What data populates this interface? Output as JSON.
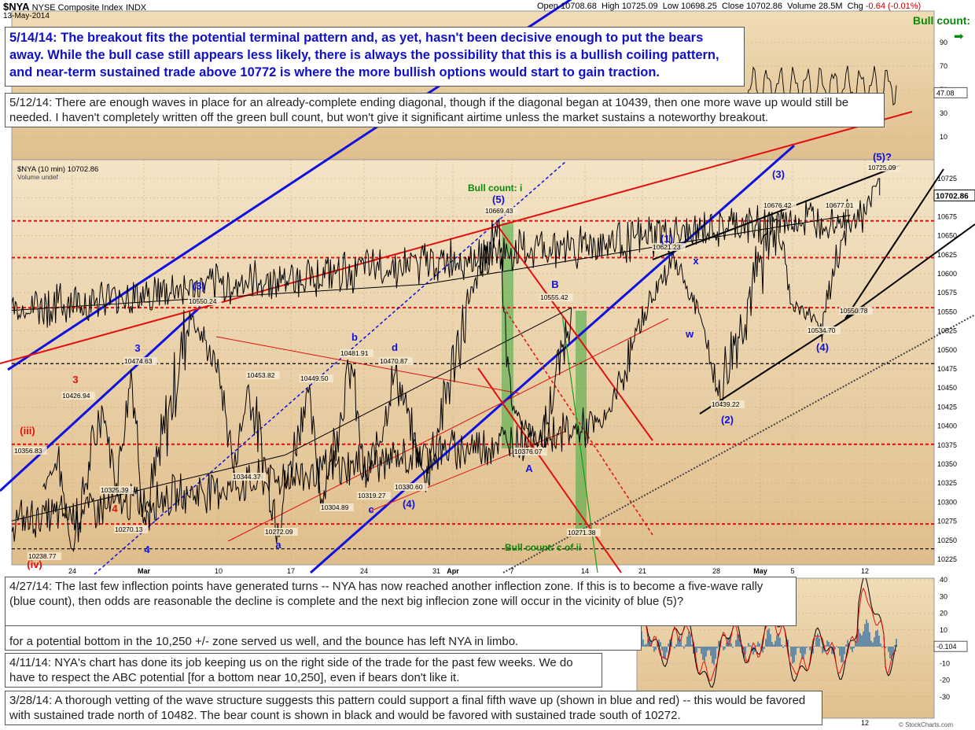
{
  "header": {
    "symbol": "$NYA",
    "name": "NYSE Composite Index",
    "exchange": "INDX",
    "date": "13-May-2014",
    "open_label": "Open",
    "open": "10708.68",
    "high_label": "High",
    "high": "10725.09",
    "low_label": "Low",
    "low": "10698.25",
    "close_label": "Close",
    "close": "10702.86",
    "volume_label": "Volume",
    "volume": "28.5M",
    "chg_label": "Chg",
    "chg": "-0.64 (-0.01%)",
    "credit": "© StockCharts.com"
  },
  "colors": {
    "panel_bg": "#e2c392",
    "panel_bg_light": "#f1e0bf",
    "price": "#000000",
    "blue": "#1010e0",
    "red": "#e01010",
    "green_zone": "#3daa3d",
    "label_green": "#0a8a0a"
  },
  "bull_count_label": "Bull count:",
  "notes": {
    "n0514": "5/14/14:  The breakout fits the potential terminal pattern and, as yet, hasn't been decisive enough to put the bears away. While the bull case still appears less likely, there is always the possibility that this is a bullish coiling pattern, and near-term sustained trade above 10772 is where the more bullish options would start to gain traction.",
    "n0512": "5/12/14:  There are enough waves in place for an already-complete ending diagonal, though if the diagonal began at 10439, then one more wave up would still be needed.  I haven't completely written off the green bull count, but won't give it significant airtime unless the market sustains a noteworthy breakout.",
    "n0427": "4/27/14:  The last few inflection points have generated turns -- NYA has now reached another inflection zone.  If this is to become a five-wave rally (blue count), then odds are reasonable the decline is complete and the next big inflecion zone will occur in the vicinity of blue (5)?",
    "n0418": "for a potential bottom in the 10,250 +/- zone served us well, and the bounce has left NYA in limbo.",
    "n0411": "4/11/14:  NYA's chart has done its job keeping us on the right side of the trade for the past few weeks.  We do have to respect the ABC potential [for a bottom near 10,250], even if bears don't like it.",
    "n0328": "3/28/14:  A thorough vetting of the wave structure suggests this pattern could support a final fifth wave up (shown in blue and red) -- this would be favored with sustained trade north of 10482.  The bear count is shown in black and would be favored with sustained trade south of 10272."
  },
  "chart_data": [
    {
      "type": "line",
      "title": "$NYA (10 min) 10702.86",
      "legend": [
        "$NYA (10 min) 10702.86",
        "Volume undef"
      ],
      "last_value_badge": "10702.86",
      "x_tick_labels": [
        "24",
        "Mar",
        "10",
        "17",
        "24",
        "31",
        "Apr",
        "7",
        "14",
        "21",
        "28",
        "May",
        "5",
        "12"
      ],
      "y_tick_labels": [
        "10725",
        "10700",
        "10675",
        "10650",
        "10625",
        "10600",
        "10575",
        "10550",
        "10525",
        "10500",
        "10475",
        "10450",
        "10425",
        "10400",
        "10375",
        "10350",
        "10325",
        "10300",
        "10275",
        "10250",
        "10225"
      ],
      "ylim": [
        10225,
        10740
      ],
      "path": [
        [
          "2014-02-20",
          10320
        ],
        [
          "2014-02-21",
          10356.83
        ],
        [
          "2014-02-24",
          10238.77
        ],
        [
          "2014-02-26",
          10426.94
        ],
        [
          "2014-02-27",
          10325.39
        ],
        [
          "2014-02-28",
          10474.63
        ],
        [
          "2014-03-03",
          10270.13
        ],
        [
          "2014-03-06",
          10550.24
        ],
        [
          "2014-03-10",
          10470
        ],
        [
          "2014-03-11",
          10344.37
        ],
        [
          "2014-03-12",
          10453.82
        ],
        [
          "2014-03-14",
          10272.09
        ],
        [
          "2014-03-18",
          10449.5
        ],
        [
          "2014-03-19",
          10304.89
        ],
        [
          "2014-03-21",
          10481.91
        ],
        [
          "2014-03-24",
          10319.27
        ],
        [
          "2014-03-26",
          10470.87
        ],
        [
          "2014-03-28",
          10330.6
        ],
        [
          "2014-04-02",
          10560
        ],
        [
          "2014-04-04",
          10669.43
        ],
        [
          "2014-04-07",
          10420
        ],
        [
          "2014-04-09",
          10376.07
        ],
        [
          "2014-04-11",
          10555.42
        ],
        [
          "2014-04-13",
          10271.38
        ],
        [
          "2014-04-15",
          10400
        ],
        [
          "2014-04-16",
          10440
        ],
        [
          "2014-04-21",
          10550
        ],
        [
          "2014-04-23",
          10621.23
        ],
        [
          "2014-04-25",
          10530
        ],
        [
          "2014-04-28",
          10439.22
        ],
        [
          "2014-05-02",
          10676.42
        ],
        [
          "2014-05-05",
          10560
        ],
        [
          "2014-05-07",
          10534.7
        ],
        [
          "2014-05-09",
          10677.01
        ],
        [
          "2014-05-10",
          10550.78
        ],
        [
          "2014-05-12",
          10680
        ],
        [
          "2014-05-13",
          10725.09
        ],
        [
          "2014-05-13",
          10702.86
        ]
      ],
      "price_labels": [
        "10356.83",
        "10238.77",
        "10426.94",
        "10325.39",
        "10474.63",
        "10270.13",
        "10550.24",
        "10344.37",
        "10453.82",
        "10272.09",
        "10449.50",
        "10304.89",
        "10481.91",
        "10319.27",
        "10470.87",
        "10330.60",
        "10669.43",
        "10376.07",
        "10555.42",
        "10271.38",
        "10621.23",
        "10439.22",
        "10676.42",
        "10534.70",
        "10677.01",
        "10550.78",
        "10725.09"
      ],
      "wave_labels": [
        {
          "text": "(iii)",
          "color": "red"
        },
        {
          "text": "(iv)",
          "color": "red"
        },
        {
          "text": "3",
          "color": "red"
        },
        {
          "text": "4",
          "color": "red"
        },
        {
          "text": "3",
          "color": "blue"
        },
        {
          "text": "4",
          "color": "blue"
        },
        {
          "text": "(3)",
          "color": "blue"
        },
        {
          "text": "a",
          "color": "blue"
        },
        {
          "text": "b",
          "color": "blue"
        },
        {
          "text": "c",
          "color": "blue"
        },
        {
          "text": "d",
          "color": "blue"
        },
        {
          "text": "(4)",
          "color": "blue"
        },
        {
          "text": "(5)",
          "color": "blue"
        },
        {
          "text": "B",
          "color": "blue"
        },
        {
          "text": "A",
          "color": "blue"
        },
        {
          "text": "(1)",
          "color": "blue"
        },
        {
          "text": "x",
          "color": "blue"
        },
        {
          "text": "w",
          "color": "blue"
        },
        {
          "text": "(2)",
          "color": "blue"
        },
        {
          "text": "(3)",
          "color": "blue"
        },
        {
          "text": "(4)",
          "color": "blue"
        },
        {
          "text": "(5)?",
          "color": "blue"
        },
        {
          "text": "Bull count: i",
          "color": "green"
        },
        {
          "text": "Bull count: c of ii",
          "color": "green"
        }
      ]
    },
    {
      "type": "line",
      "title": "upper oscillator",
      "y_tick_labels": [
        "90",
        "70",
        "50",
        "30",
        "10"
      ],
      "ylim": [
        0,
        100
      ],
      "last_value_badge": "47.08"
    },
    {
      "type": "line",
      "title": "lower oscillator",
      "y_tick_labels": [
        "40",
        "30",
        "20",
        "10",
        "0",
        "-10",
        "-20",
        "-30"
      ],
      "ylim": [
        -38,
        42
      ],
      "last_value_badge": "-0.104",
      "x_tick_labels": [
        "12"
      ]
    }
  ]
}
